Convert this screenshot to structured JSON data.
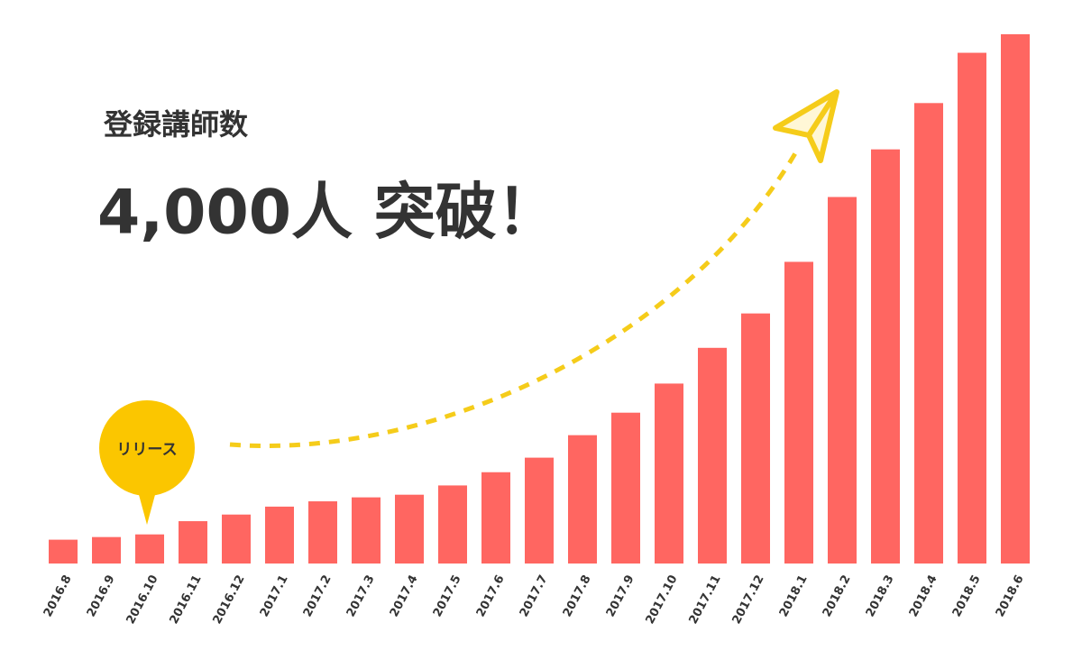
{
  "chart_data": {
    "type": "bar",
    "title": "登録講師数",
    "subtitle": "4,000人 突破！",
    "annotation": "リリース",
    "categories": [
      "2016.8",
      "2016.9",
      "2016.10",
      "2016.11",
      "2016.12",
      "2017.1",
      "2017.2",
      "2017.3",
      "2017.4",
      "2017.5",
      "2017.6",
      "2017.7",
      "2017.8",
      "2017.9",
      "2017.10",
      "2017.11",
      "2017.12",
      "2018.1",
      "2018.2",
      "2018.3",
      "2018.4",
      "2018.5",
      "2018.6"
    ],
    "values": [
      180,
      200,
      220,
      320,
      370,
      430,
      470,
      500,
      520,
      590,
      690,
      800,
      970,
      1140,
      1360,
      1630,
      1890,
      2280,
      2770,
      3130,
      3480,
      3860,
      4000
    ],
    "color": "#ff6661",
    "ylim": [
      0,
      4000
    ]
  }
}
